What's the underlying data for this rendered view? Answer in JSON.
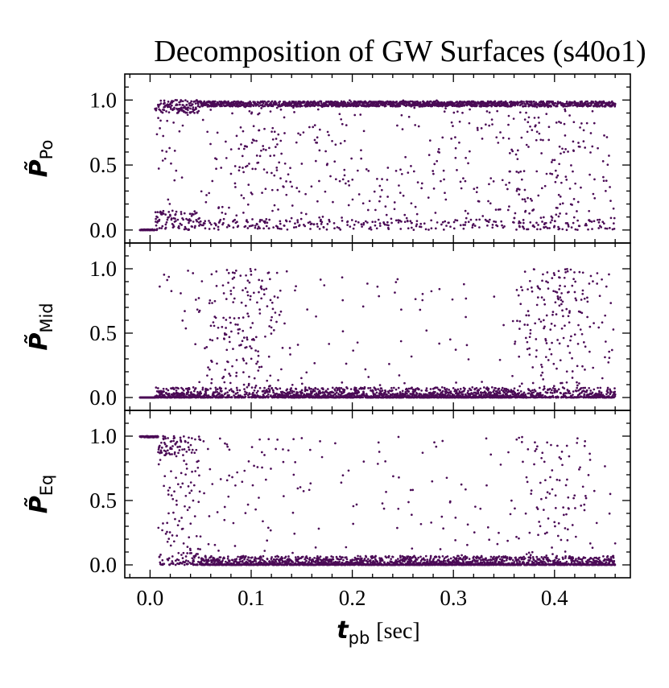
{
  "chart_data": {
    "type": "scatter",
    "title": "Decomposition of GW Surfaces (s40o1)",
    "xlabel": {
      "symbol": "t",
      "subscript": "pb",
      "unit": "[sec]"
    },
    "xlim": [
      -0.025,
      0.475
    ],
    "x_ticks": [
      0.0,
      0.1,
      0.2,
      0.3,
      0.4
    ],
    "x_tick_labels": [
      "0.0",
      "0.1",
      "0.2",
      "0.3",
      "0.4"
    ],
    "x_minor_step": 0.02,
    "marker_color": "#4b0b56",
    "marker": "small dots",
    "series_time_range": [
      -0.01,
      0.46
    ],
    "panels": [
      {
        "name": "Po",
        "ylabel": {
          "symbol": "P̃",
          "subscript": "Po"
        },
        "ylim": [
          -0.1,
          1.2
        ],
        "y_ticks": [
          0.0,
          0.5,
          1.0
        ],
        "y_tick_labels": [
          "0.0",
          "0.5",
          "1.0"
        ],
        "description": "near 0 before bounce, rising after ~0.01 s; dense band at 1.0 from ~0.05 s to 0.46 s with scattered points across full range",
        "segments": [
          {
            "t": [
              -0.01,
              0.005
            ],
            "level": 0.0
          },
          {
            "t": [
              0.005,
              0.05
            ],
            "mix": "transition"
          },
          {
            "t": [
              0.05,
              0.46
            ],
            "level": 0.98
          }
        ]
      },
      {
        "name": "Mid",
        "ylabel": {
          "symbol": "P̃",
          "subscript": "Mid"
        },
        "ylim": [
          -0.1,
          1.2
        ],
        "y_ticks": [
          0.0,
          0.5,
          1.0
        ],
        "y_tick_labels": [
          "0.0",
          "0.5",
          "1.0"
        ],
        "description": "mostly near 0.0 with sparse excursions; activity bursts near 0.07–0.13 s and 0.37–0.44 s reaching ~1.0",
        "segments": [
          {
            "t": [
              -0.01,
              0.005
            ],
            "level": 0.0
          },
          {
            "t": [
              0.005,
              0.46
            ],
            "level": 0.02
          }
        ]
      },
      {
        "name": "Eq",
        "ylabel": {
          "symbol": "P̃",
          "subscript": "Eq"
        },
        "ylim": [
          -0.1,
          1.2
        ],
        "y_ticks": [
          0.0,
          0.5,
          1.0
        ],
        "y_tick_labels": [
          "0.0",
          "0.5",
          "1.0"
        ],
        "description": "at 1.0 before ~0.01 s, dropping to a dense band near 0.0 after ~0.05 s with scattered excursions",
        "segments": [
          {
            "t": [
              -0.01,
              0.008
            ],
            "level": 1.0
          },
          {
            "t": [
              0.008,
              0.05
            ],
            "mix": "transition"
          },
          {
            "t": [
              0.05,
              0.46
            ],
            "level": 0.02
          }
        ]
      }
    ]
  }
}
